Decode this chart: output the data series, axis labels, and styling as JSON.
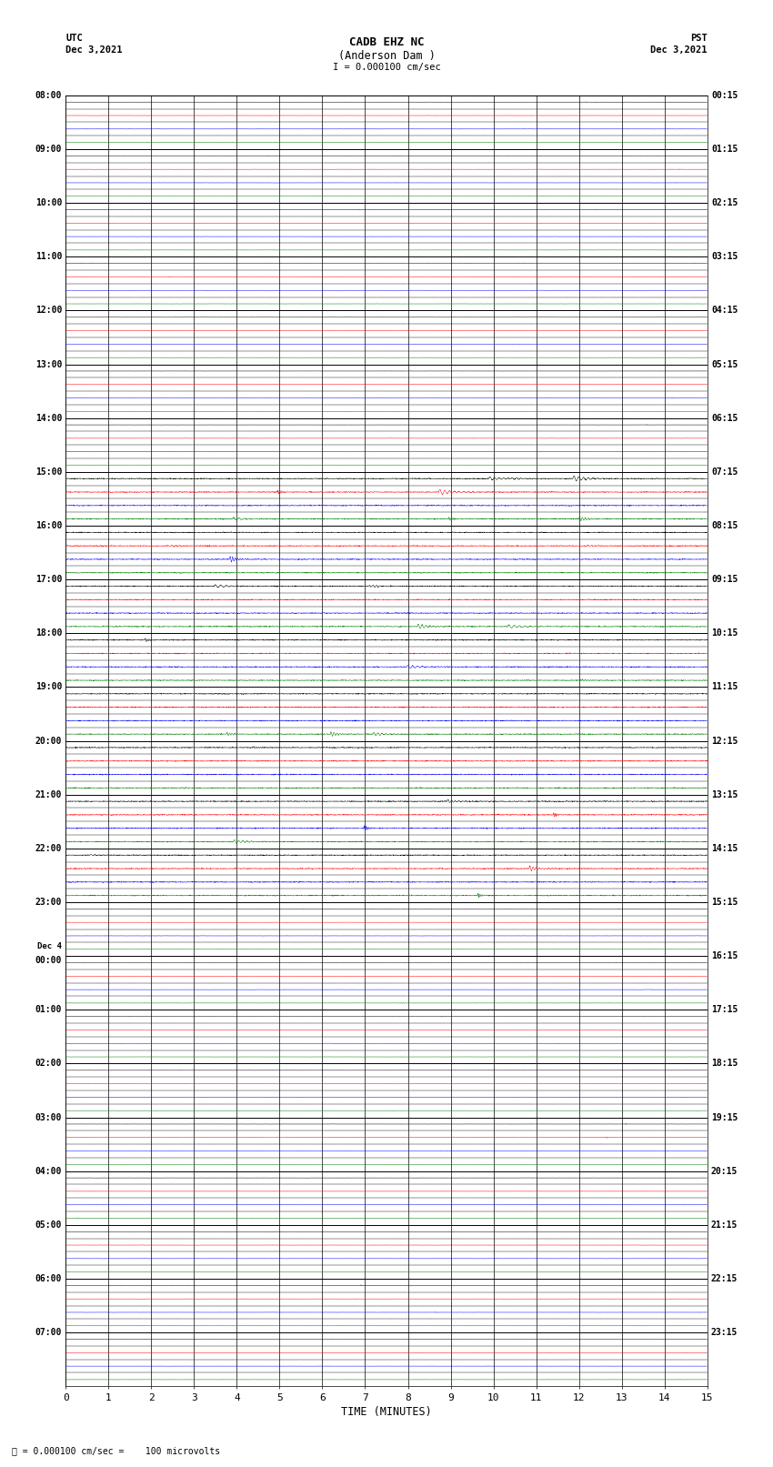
{
  "title_line1": "CADB EHZ NC",
  "title_line2": "(Anderson Dam )",
  "title_line3": "I = 0.000100 cm/sec",
  "left_header_line1": "UTC",
  "left_header_line2": "Dec 3,2021",
  "right_header_line1": "PST",
  "right_header_line2": "Dec 3,2021",
  "xlabel": "TIME (MINUTES)",
  "footer_text": "I = 0.000100 cm/sec =    100 microvolts",
  "utc_labels": [
    "08:00",
    "09:00",
    "10:00",
    "11:00",
    "12:00",
    "13:00",
    "14:00",
    "15:00",
    "16:00",
    "17:00",
    "18:00",
    "19:00",
    "20:00",
    "21:00",
    "22:00",
    "23:00",
    "Dec 4\n00:00",
    "01:00",
    "02:00",
    "03:00",
    "04:00",
    "05:00",
    "06:00",
    "07:00"
  ],
  "pst_labels": [
    "00:15",
    "01:15",
    "02:15",
    "03:15",
    "04:15",
    "05:15",
    "06:15",
    "07:15",
    "08:15",
    "09:15",
    "10:15",
    "11:15",
    "12:15",
    "13:15",
    "14:15",
    "15:15",
    "16:15",
    "17:15",
    "18:15",
    "19:15",
    "20:15",
    "21:15",
    "22:15",
    "23:15"
  ],
  "num_hours": 24,
  "subrows_per_hour": 4,
  "total_minutes": 15,
  "noise_seed": 12345,
  "background_color": "#ffffff",
  "trace_colors": [
    "black",
    "red",
    "blue",
    "green"
  ],
  "fig_width": 8.5,
  "fig_height": 16.13,
  "active_hour_ranges": [
    7,
    8,
    9,
    10,
    11,
    12,
    13,
    14
  ],
  "quiet_base_amp": 0.003,
  "active_base_amp": 0.015,
  "samples_per_row": 3000
}
